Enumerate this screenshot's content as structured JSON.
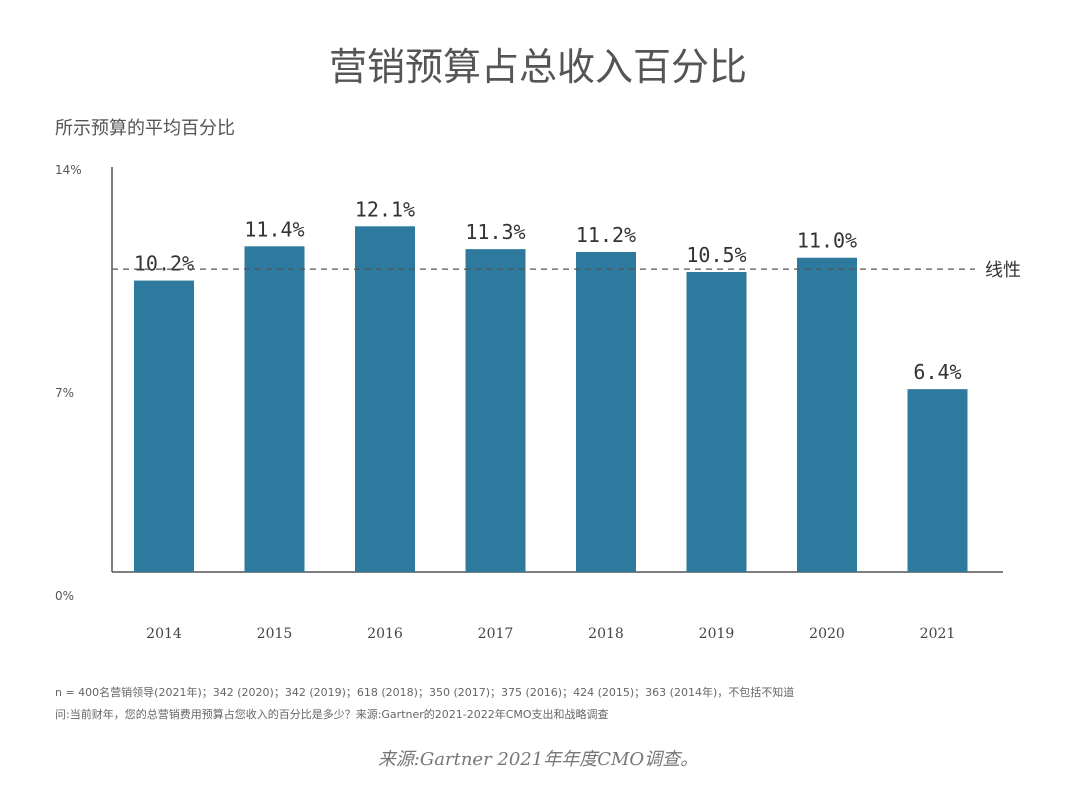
{
  "chart_data": {
    "type": "bar",
    "title": "营销预算占总收入百分比",
    "ylabel": "所示预算的平均百分比",
    "xlabel": "",
    "categories": [
      "2014",
      "2015",
      "2016",
      "2017",
      "2018",
      "2019",
      "2020",
      "2021"
    ],
    "values": [
      10.2,
      11.4,
      12.1,
      11.3,
      11.2,
      10.5,
      11.0,
      6.4
    ],
    "data_labels": [
      "10.2%",
      "11.4%",
      "12.1%",
      "11.3%",
      "11.2%",
      "10.5%",
      "11.0%",
      "6.4%"
    ],
    "ylim": [
      0,
      14
    ],
    "yticks": [
      0,
      7,
      14
    ],
    "ytick_labels": [
      "0%",
      "7%",
      "14%"
    ],
    "trendline": {
      "label": "线性",
      "value": 10.6
    },
    "bar_color": "#2e7a9e",
    "grid": false
  },
  "footnotes": {
    "line1": "n = 400名营销领导(2021年)；342 (2020)；342 (2019)；618 (2018)；350 (2017)；375 (2016)；424 (2015)；363 (2014年)，不包括不知道",
    "line2": "问:当前财年，您的总营销费用预算占您收入的百分比是多少？来源:Gartner的2021-2022年CMO支出和战略调查"
  },
  "source": "来源:Gartner 2021年年度CMO调查。"
}
